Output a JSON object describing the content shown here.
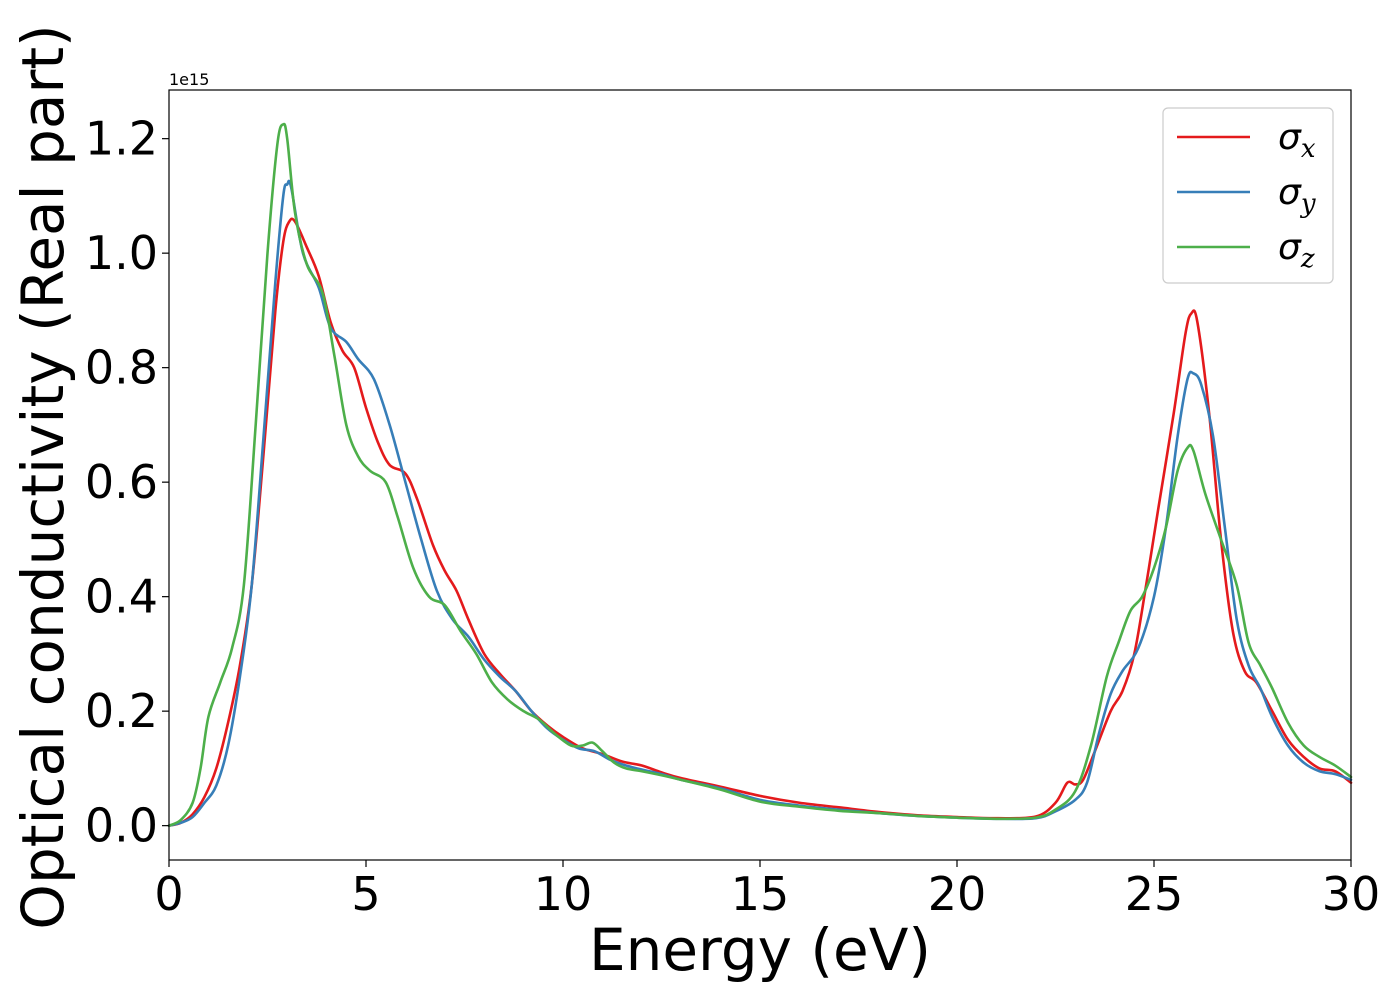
{
  "chart_data": {
    "type": "line",
    "xlabel": "Energy (eV)",
    "ylabel": "Optical conductivity (Real part)",
    "offset_label": "1e15",
    "xlim": [
      0,
      30
    ],
    "ylim": [
      -0.06,
      1.285
    ],
    "xticks": [
      0,
      5,
      10,
      15,
      20,
      25,
      30
    ],
    "xtick_labels": [
      "0",
      "5",
      "10",
      "15",
      "20",
      "25",
      "30"
    ],
    "yticks": [
      0.0,
      0.2,
      0.4,
      0.6,
      0.8,
      1.0,
      1.2
    ],
    "ytick_labels": [
      "0.0",
      "0.2",
      "0.4",
      "0.6",
      "0.8",
      "1.0",
      "1.2"
    ],
    "grid": false,
    "legend_position": "top-right",
    "series": [
      {
        "name": "σ",
        "subscript": "x",
        "color": "#e41a1c",
        "points": [
          [
            0,
            0.0
          ],
          [
            0.3,
            0.005
          ],
          [
            0.6,
            0.02
          ],
          [
            0.9,
            0.05
          ],
          [
            1.2,
            0.1
          ],
          [
            1.5,
            0.18
          ],
          [
            1.8,
            0.28
          ],
          [
            2.1,
            0.42
          ],
          [
            2.4,
            0.65
          ],
          [
            2.7,
            0.9
          ],
          [
            2.9,
            1.02
          ],
          [
            3.05,
            1.055
          ],
          [
            3.2,
            1.055
          ],
          [
            3.5,
            1.01
          ],
          [
            3.8,
            0.96
          ],
          [
            4.1,
            0.88
          ],
          [
            4.4,
            0.83
          ],
          [
            4.7,
            0.8
          ],
          [
            5.0,
            0.73
          ],
          [
            5.3,
            0.67
          ],
          [
            5.6,
            0.63
          ],
          [
            6.0,
            0.615
          ],
          [
            6.3,
            0.57
          ],
          [
            6.7,
            0.49
          ],
          [
            7.0,
            0.445
          ],
          [
            7.3,
            0.41
          ],
          [
            7.6,
            0.36
          ],
          [
            8.0,
            0.3
          ],
          [
            8.4,
            0.265
          ],
          [
            8.8,
            0.235
          ],
          [
            9.2,
            0.2
          ],
          [
            9.6,
            0.175
          ],
          [
            10.0,
            0.155
          ],
          [
            10.5,
            0.135
          ],
          [
            11.0,
            0.125
          ],
          [
            11.5,
            0.112
          ],
          [
            12.0,
            0.105
          ],
          [
            12.5,
            0.093
          ],
          [
            13.0,
            0.083
          ],
          [
            14.0,
            0.068
          ],
          [
            15.0,
            0.052
          ],
          [
            16.0,
            0.04
          ],
          [
            17.0,
            0.032
          ],
          [
            18.0,
            0.024
          ],
          [
            19.0,
            0.018
          ],
          [
            20.0,
            0.015
          ],
          [
            21.0,
            0.013
          ],
          [
            22.0,
            0.016
          ],
          [
            22.5,
            0.04
          ],
          [
            22.8,
            0.075
          ],
          [
            23.0,
            0.072
          ],
          [
            23.2,
            0.08
          ],
          [
            23.5,
            0.13
          ],
          [
            23.9,
            0.2
          ],
          [
            24.2,
            0.235
          ],
          [
            24.5,
            0.3
          ],
          [
            24.8,
            0.42
          ],
          [
            25.1,
            0.55
          ],
          [
            25.5,
            0.72
          ],
          [
            25.8,
            0.86
          ],
          [
            25.95,
            0.895
          ],
          [
            26.1,
            0.88
          ],
          [
            26.4,
            0.72
          ],
          [
            26.7,
            0.5
          ],
          [
            27.0,
            0.34
          ],
          [
            27.3,
            0.27
          ],
          [
            27.6,
            0.25
          ],
          [
            28.0,
            0.2
          ],
          [
            28.4,
            0.15
          ],
          [
            28.8,
            0.12
          ],
          [
            29.2,
            0.1
          ],
          [
            29.6,
            0.095
          ],
          [
            30.0,
            0.075
          ]
        ]
      },
      {
        "name": "σ",
        "subscript": "y",
        "color": "#377eb8",
        "points": [
          [
            0,
            0.0
          ],
          [
            0.3,
            0.005
          ],
          [
            0.6,
            0.015
          ],
          [
            0.9,
            0.04
          ],
          [
            1.2,
            0.07
          ],
          [
            1.5,
            0.14
          ],
          [
            1.8,
            0.26
          ],
          [
            2.1,
            0.42
          ],
          [
            2.4,
            0.68
          ],
          [
            2.7,
            0.95
          ],
          [
            2.9,
            1.1
          ],
          [
            3.0,
            1.12
          ],
          [
            3.1,
            1.115
          ],
          [
            3.4,
            1.0
          ],
          [
            3.8,
            0.94
          ],
          [
            4.1,
            0.87
          ],
          [
            4.5,
            0.845
          ],
          [
            4.8,
            0.815
          ],
          [
            5.2,
            0.78
          ],
          [
            5.6,
            0.7
          ],
          [
            6.0,
            0.6
          ],
          [
            6.4,
            0.5
          ],
          [
            6.8,
            0.41
          ],
          [
            7.2,
            0.36
          ],
          [
            7.6,
            0.33
          ],
          [
            8.0,
            0.29
          ],
          [
            8.4,
            0.26
          ],
          [
            8.8,
            0.235
          ],
          [
            9.2,
            0.2
          ],
          [
            9.6,
            0.17
          ],
          [
            10.0,
            0.15
          ],
          [
            10.4,
            0.135
          ],
          [
            10.8,
            0.13
          ],
          [
            11.2,
            0.115
          ],
          [
            11.6,
            0.105
          ],
          [
            12.0,
            0.098
          ],
          [
            12.5,
            0.09
          ],
          [
            13.0,
            0.08
          ],
          [
            14.0,
            0.065
          ],
          [
            15.0,
            0.045
          ],
          [
            16.0,
            0.035
          ],
          [
            17.0,
            0.028
          ],
          [
            18.0,
            0.022
          ],
          [
            19.0,
            0.017
          ],
          [
            20.0,
            0.014
          ],
          [
            21.0,
            0.012
          ],
          [
            22.0,
            0.013
          ],
          [
            22.5,
            0.025
          ],
          [
            23.0,
            0.045
          ],
          [
            23.3,
            0.075
          ],
          [
            23.6,
            0.16
          ],
          [
            23.9,
            0.23
          ],
          [
            24.2,
            0.27
          ],
          [
            24.6,
            0.31
          ],
          [
            25.0,
            0.4
          ],
          [
            25.3,
            0.52
          ],
          [
            25.6,
            0.68
          ],
          [
            25.85,
            0.78
          ],
          [
            26.0,
            0.79
          ],
          [
            26.2,
            0.77
          ],
          [
            26.5,
            0.68
          ],
          [
            26.8,
            0.52
          ],
          [
            27.1,
            0.36
          ],
          [
            27.4,
            0.28
          ],
          [
            27.7,
            0.24
          ],
          [
            28.0,
            0.19
          ],
          [
            28.4,
            0.14
          ],
          [
            28.8,
            0.11
          ],
          [
            29.2,
            0.095
          ],
          [
            29.6,
            0.09
          ],
          [
            30.0,
            0.08
          ]
        ]
      },
      {
        "name": "σ",
        "subscript": "z",
        "color": "#4daf4a",
        "points": [
          [
            0,
            0.0
          ],
          [
            0.3,
            0.01
          ],
          [
            0.6,
            0.04
          ],
          [
            0.8,
            0.1
          ],
          [
            1.0,
            0.19
          ],
          [
            1.3,
            0.25
          ],
          [
            1.6,
            0.31
          ],
          [
            1.9,
            0.42
          ],
          [
            2.2,
            0.7
          ],
          [
            2.5,
            1.0
          ],
          [
            2.75,
            1.19
          ],
          [
            2.9,
            1.225
          ],
          [
            3.0,
            1.2
          ],
          [
            3.2,
            1.07
          ],
          [
            3.5,
            0.98
          ],
          [
            3.9,
            0.93
          ],
          [
            4.2,
            0.82
          ],
          [
            4.5,
            0.7
          ],
          [
            4.8,
            0.645
          ],
          [
            5.1,
            0.62
          ],
          [
            5.5,
            0.6
          ],
          [
            5.8,
            0.54
          ],
          [
            6.2,
            0.45
          ],
          [
            6.6,
            0.4
          ],
          [
            7.0,
            0.385
          ],
          [
            7.4,
            0.34
          ],
          [
            7.8,
            0.3
          ],
          [
            8.2,
            0.25
          ],
          [
            8.6,
            0.22
          ],
          [
            9.0,
            0.2
          ],
          [
            9.4,
            0.185
          ],
          [
            9.8,
            0.16
          ],
          [
            10.2,
            0.14
          ],
          [
            10.5,
            0.14
          ],
          [
            10.75,
            0.145
          ],
          [
            11.0,
            0.13
          ],
          [
            11.3,
            0.11
          ],
          [
            11.6,
            0.1
          ],
          [
            12.0,
            0.095
          ],
          [
            12.5,
            0.088
          ],
          [
            13.0,
            0.08
          ],
          [
            14.0,
            0.063
          ],
          [
            15.0,
            0.042
          ],
          [
            16.0,
            0.033
          ],
          [
            17.0,
            0.026
          ],
          [
            18.0,
            0.022
          ],
          [
            19.0,
            0.017
          ],
          [
            20.0,
            0.014
          ],
          [
            21.0,
            0.012
          ],
          [
            22.0,
            0.014
          ],
          [
            22.5,
            0.028
          ],
          [
            23.0,
            0.06
          ],
          [
            23.4,
            0.14
          ],
          [
            23.8,
            0.26
          ],
          [
            24.1,
            0.32
          ],
          [
            24.4,
            0.375
          ],
          [
            24.7,
            0.4
          ],
          [
            25.0,
            0.45
          ],
          [
            25.3,
            0.52
          ],
          [
            25.6,
            0.62
          ],
          [
            25.85,
            0.66
          ],
          [
            26.0,
            0.655
          ],
          [
            26.3,
            0.58
          ],
          [
            26.7,
            0.5
          ],
          [
            27.1,
            0.42
          ],
          [
            27.4,
            0.32
          ],
          [
            27.7,
            0.28
          ],
          [
            28.0,
            0.24
          ],
          [
            28.4,
            0.18
          ],
          [
            28.8,
            0.14
          ],
          [
            29.2,
            0.12
          ],
          [
            29.6,
            0.105
          ],
          [
            30.0,
            0.085
          ]
        ]
      }
    ]
  }
}
